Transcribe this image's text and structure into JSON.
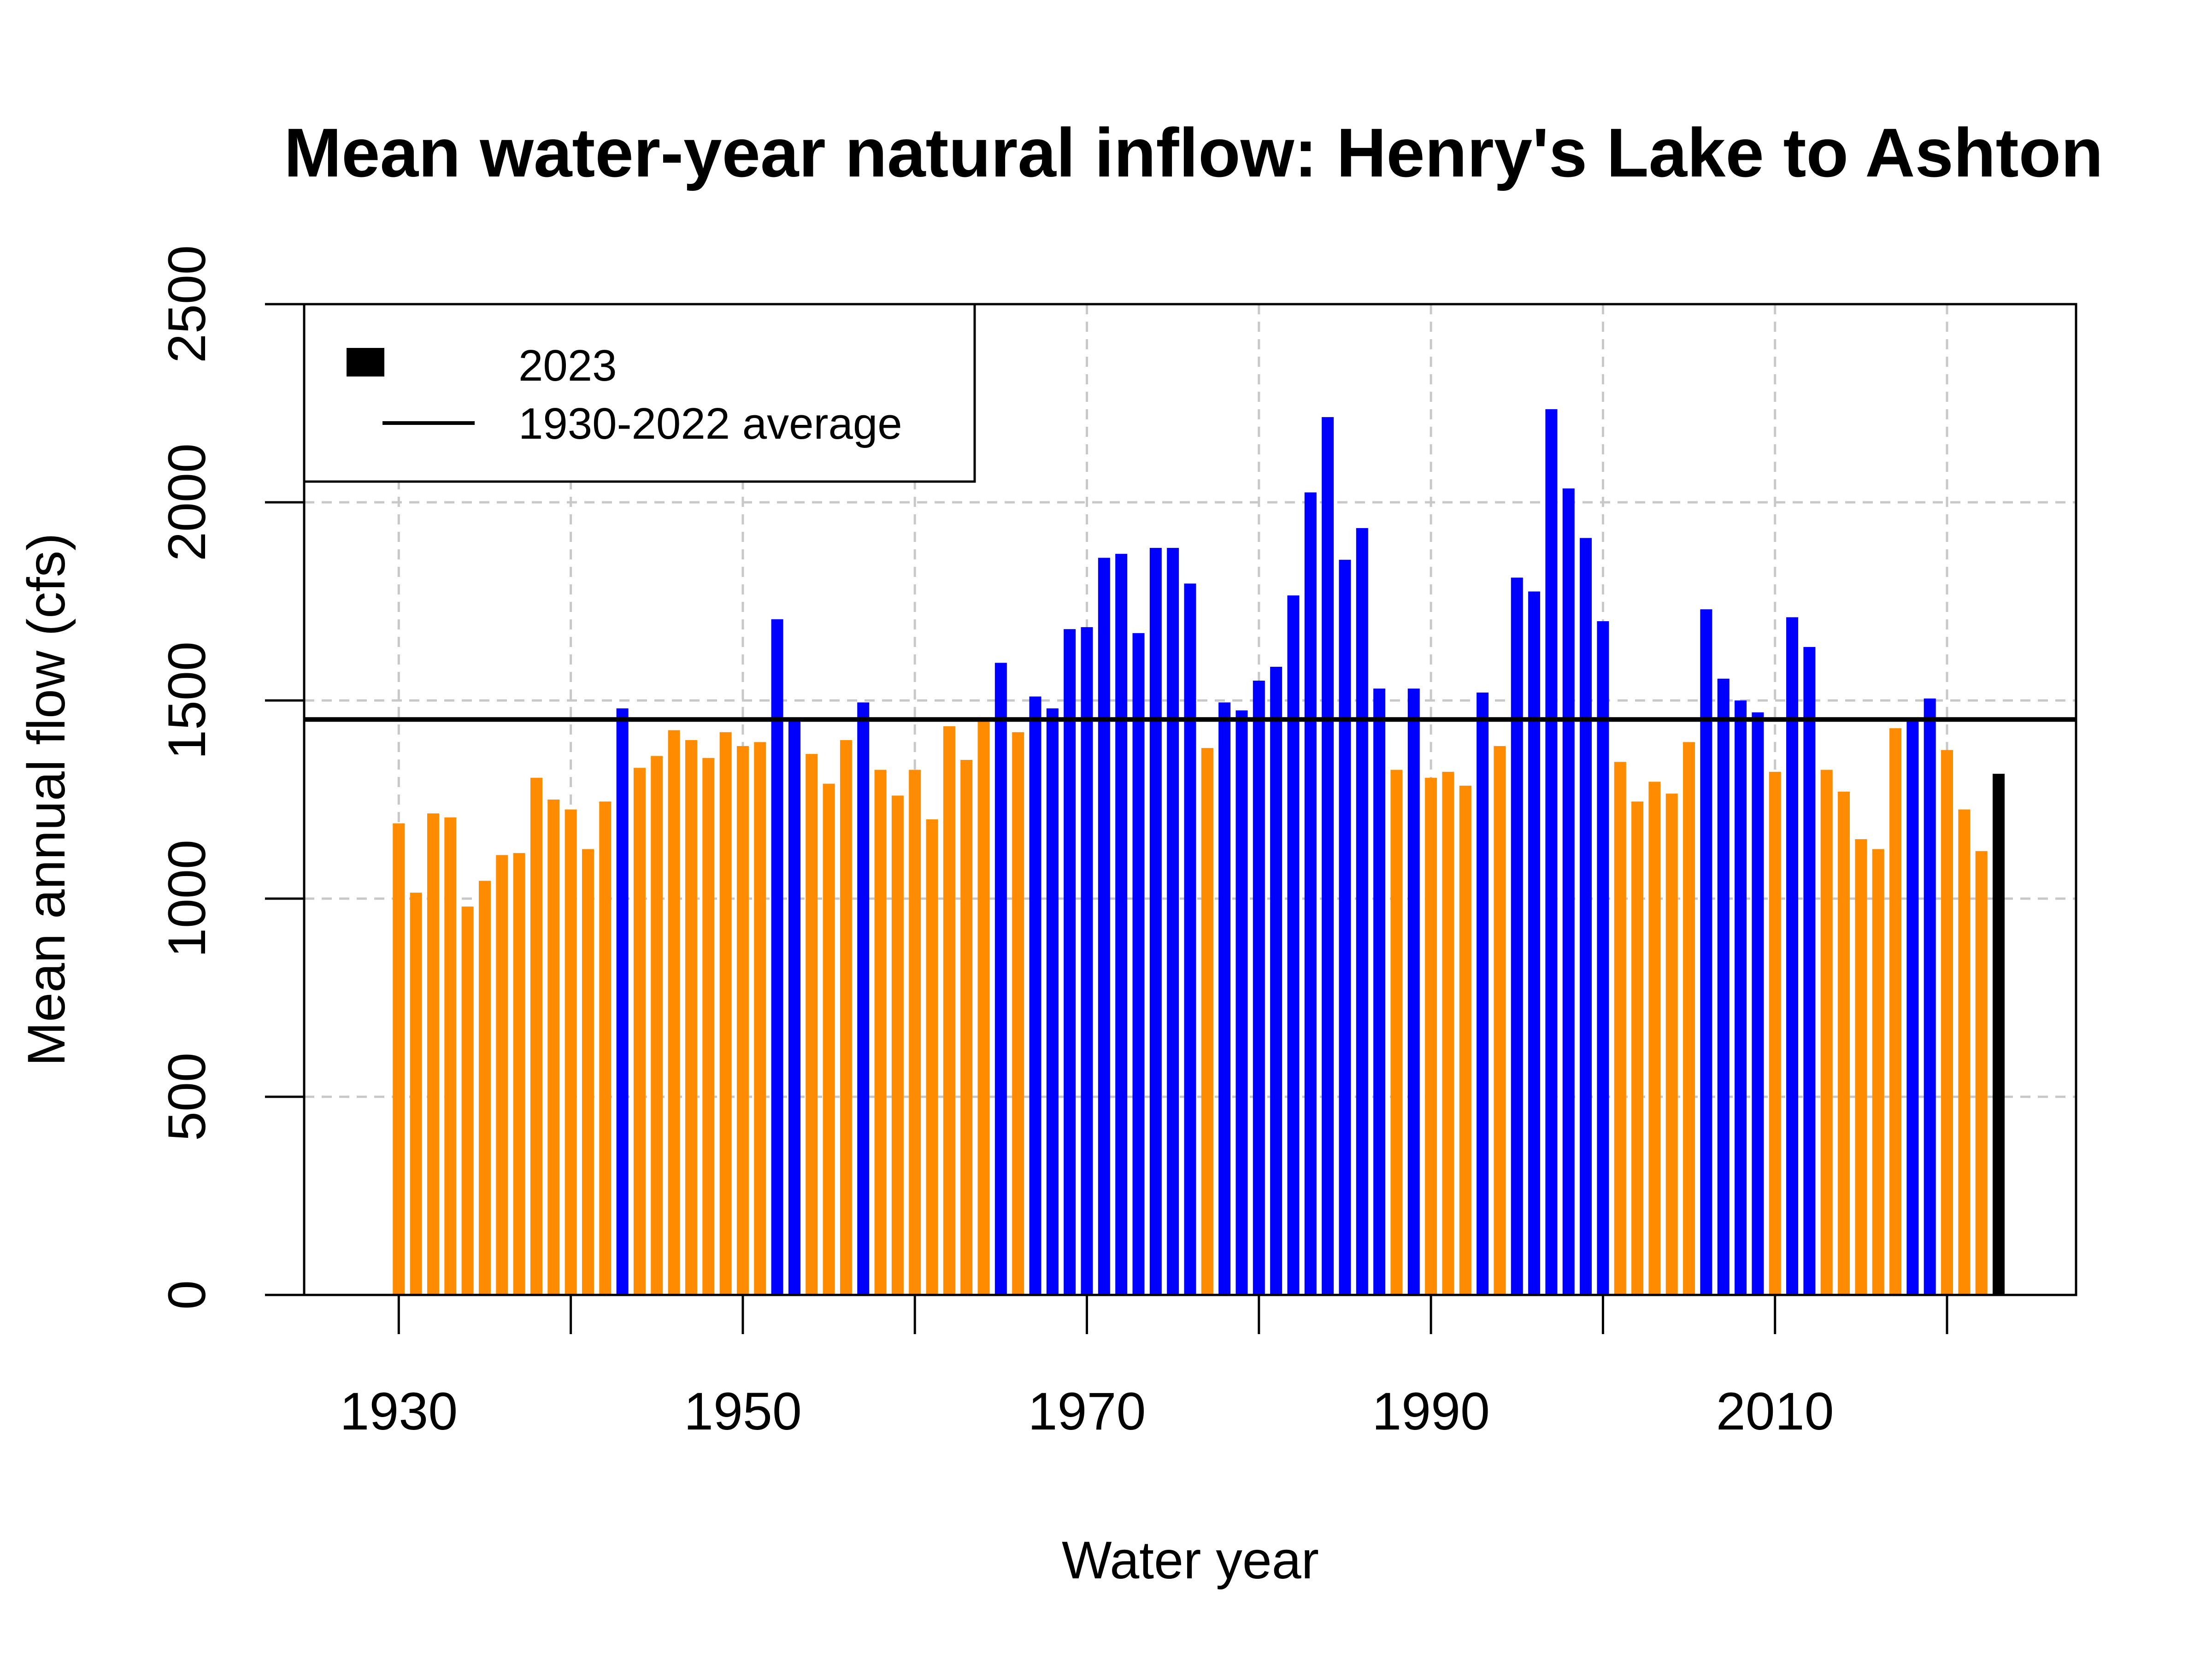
{
  "chart_data": {
    "type": "bar",
    "title": "Mean water-year natural inflow: Henry's Lake to Ashton",
    "xlabel": "Water year",
    "ylabel": "Mean annual flow (cfs)",
    "ylim": [
      0,
      2500
    ],
    "xlim": [
      1924.5,
      2027.5
    ],
    "yticks": [
      "0",
      "500",
      "1000",
      "1500",
      "2000",
      "2500"
    ],
    "xticks": [
      "1930",
      "1950",
      "1970",
      "1990",
      "2010"
    ],
    "xtick_values": [
      1930,
      1950,
      1970,
      1990,
      2010
    ],
    "xgrid_values": [
      1930,
      1940,
      1950,
      1960,
      1970,
      1980,
      1990,
      2000,
      2010,
      2020
    ],
    "ygrid_values": [
      0,
      500,
      1000,
      1500,
      2000,
      2500
    ],
    "average": 1452,
    "grid": true,
    "legend": {
      "position": "top-left",
      "items": [
        {
          "label": "2023",
          "kind": "box"
        },
        {
          "label": "1930-2022 average",
          "kind": "line"
        }
      ]
    },
    "colors": {
      "above_average": "#0000ff",
      "below_average": "#ff8c00",
      "current_year": "#000000",
      "average_line": "#000000"
    },
    "years": [
      1930,
      1931,
      1932,
      1933,
      1934,
      1935,
      1936,
      1937,
      1938,
      1939,
      1940,
      1941,
      1942,
      1943,
      1944,
      1945,
      1946,
      1947,
      1948,
      1949,
      1950,
      1951,
      1952,
      1953,
      1954,
      1955,
      1956,
      1957,
      1958,
      1959,
      1960,
      1961,
      1962,
      1963,
      1964,
      1965,
      1966,
      1967,
      1968,
      1969,
      1970,
      1971,
      1972,
      1973,
      1974,
      1975,
      1976,
      1977,
      1978,
      1979,
      1980,
      1981,
      1982,
      1983,
      1984,
      1985,
      1986,
      1987,
      1988,
      1989,
      1990,
      1991,
      1992,
      1993,
      1994,
      1995,
      1996,
      1997,
      1998,
      1999,
      2000,
      2001,
      2002,
      2003,
      2004,
      2005,
      2006,
      2007,
      2008,
      2009,
      2010,
      2011,
      2012,
      2013,
      2014,
      2015,
      2016,
      2017,
      2018,
      2019,
      2020,
      2021,
      2022,
      2023
    ],
    "values": [
      1190,
      1015,
      1215,
      1205,
      980,
      1045,
      1110,
      1115,
      1305,
      1250,
      1225,
      1125,
      1245,
      1480,
      1330,
      1360,
      1425,
      1400,
      1355,
      1420,
      1385,
      1395,
      1705,
      1455,
      1365,
      1290,
      1400,
      1495,
      1325,
      1260,
      1325,
      1200,
      1435,
      1350,
      1450,
      1595,
      1420,
      1510,
      1480,
      1680,
      1685,
      1860,
      1870,
      1670,
      1885,
      1885,
      1795,
      1380,
      1495,
      1475,
      1550,
      1585,
      1765,
      2025,
      2215,
      1855,
      1935,
      1530,
      1325,
      1530,
      1305,
      1320,
      1285,
      1520,
      1385,
      1810,
      1775,
      2235,
      2035,
      1910,
      1700,
      1345,
      1245,
      1295,
      1265,
      1395,
      1730,
      1555,
      1500,
      1470,
      1320,
      1710,
      1635,
      1325,
      1270,
      1150,
      1125,
      1430,
      1455,
      1505,
      1375,
      1225,
      1120,
      1315
    ]
  }
}
